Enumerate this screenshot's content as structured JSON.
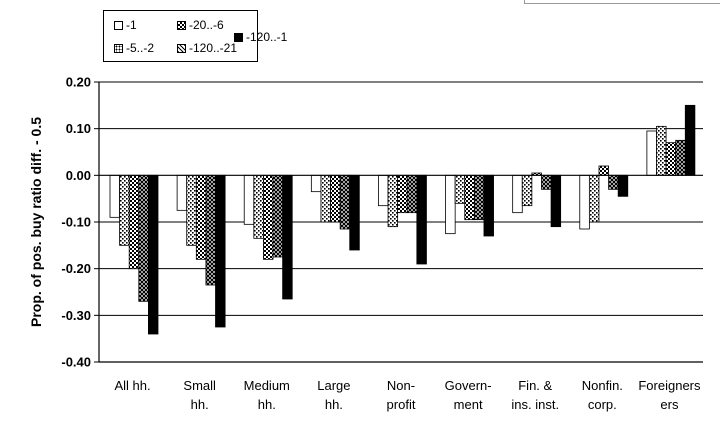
{
  "chart_data": {
    "type": "bar",
    "title": "",
    "xlabel": "",
    "ylabel": "Prop. of pos. buy ratio diff. - 0.5",
    "ylim": [
      -0.4,
      0.2
    ],
    "yticks": [
      "0.20",
      "0.10",
      "0.00",
      "-0.10",
      "-0.20",
      "-0.30",
      "-0.40"
    ],
    "grid": true,
    "legend_position": "top-left",
    "categories": [
      [
        "All hh."
      ],
      [
        "Small",
        "hh."
      ],
      [
        "Medium",
        "hh."
      ],
      [
        "Large",
        "hh."
      ],
      [
        "Non-",
        "profit"
      ],
      [
        "Govern-",
        "ment"
      ],
      [
        "Fin. &",
        "ins. inst."
      ],
      [
        "Nonfin.",
        "corp."
      ],
      [
        "Foreigners",
        "ers"
      ]
    ],
    "series": [
      {
        "name": "-1",
        "pattern": "white",
        "values": [
          -0.09,
          -0.075,
          -0.105,
          -0.035,
          -0.065,
          -0.125,
          -0.08,
          -0.115,
          0.095
        ]
      },
      {
        "name": "-5..-2",
        "pattern": "dots",
        "values": [
          -0.15,
          -0.15,
          -0.135,
          -0.1,
          -0.11,
          -0.06,
          -0.065,
          -0.1,
          0.105
        ]
      },
      {
        "name": "-20..-6",
        "pattern": "check",
        "values": [
          -0.2,
          -0.18,
          -0.18,
          -0.1,
          -0.08,
          -0.095,
          0.005,
          0.02,
          0.07
        ]
      },
      {
        "name": "-120..-21",
        "pattern": "cross",
        "values": [
          -0.27,
          -0.235,
          -0.175,
          -0.115,
          -0.08,
          -0.095,
          -0.03,
          -0.03,
          0.075
        ]
      },
      {
        "name": "-120..-1",
        "pattern": "black",
        "values": [
          -0.34,
          -0.325,
          -0.265,
          -0.16,
          -0.19,
          -0.13,
          -0.11,
          -0.045,
          0.15
        ]
      }
    ]
  }
}
